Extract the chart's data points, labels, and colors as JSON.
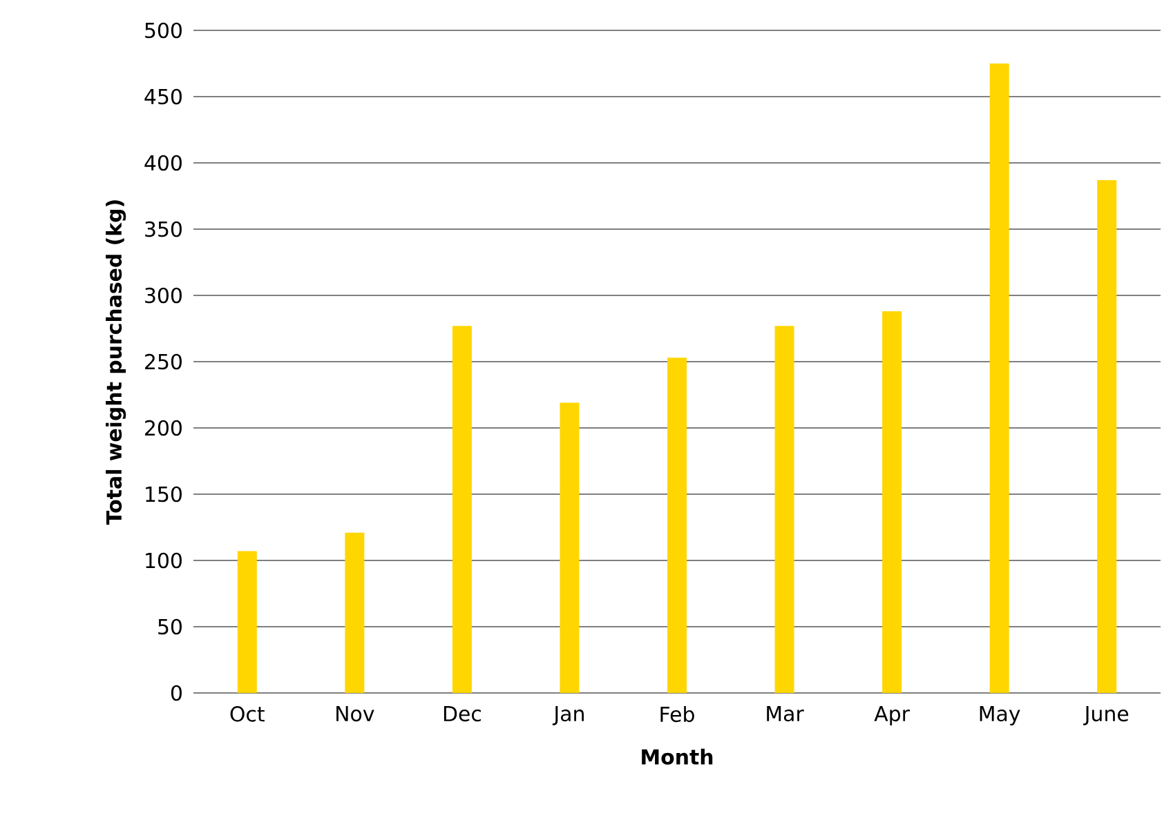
{
  "chart_data": {
    "type": "bar",
    "xlabel": "Month",
    "ylabel": "Total weight purchased (kg)",
    "categories": [
      "Oct",
      "Nov",
      "Dec",
      "Jan",
      "Feb",
      "Mar",
      "Apr",
      "May",
      "June"
    ],
    "values": [
      107,
      121,
      277,
      219,
      253,
      277,
      288,
      475,
      387
    ],
    "color": "#ffd600",
    "ylim": [
      0,
      500
    ],
    "yticks": [
      0,
      50,
      100,
      150,
      200,
      250,
      300,
      350,
      400,
      450,
      500
    ],
    "grid": "y"
  }
}
